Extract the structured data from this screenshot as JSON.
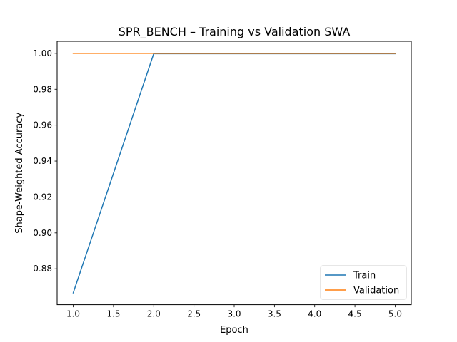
{
  "chart_data": {
    "type": "line",
    "title": "SPR_BENCH – Training vs Validation SWA",
    "xlabel": "Epoch",
    "ylabel": "Shape-Weighted Accuracy",
    "x": [
      1,
      2,
      3,
      4,
      5
    ],
    "series": [
      {
        "name": "Train",
        "values": [
          0.8666,
          0.9998,
          0.9998,
          0.9998,
          0.9998
        ],
        "color": "#1f77b4"
      },
      {
        "name": "Validation",
        "values": [
          1.0,
          1.0,
          1.0,
          1.0,
          1.0
        ],
        "color": "#ff7f0e"
      }
    ],
    "xlim": [
      0.8,
      5.2
    ],
    "ylim": [
      0.86,
      1.0067
    ],
    "xticks": [
      1.0,
      1.5,
      2.0,
      2.5,
      3.0,
      3.5,
      4.0,
      4.5,
      5.0
    ],
    "xtick_labels": [
      "1.0",
      "1.5",
      "2.0",
      "2.5",
      "3.0",
      "3.5",
      "4.0",
      "4.5",
      "5.0"
    ],
    "yticks": [
      0.88,
      0.9,
      0.92,
      0.94,
      0.96,
      0.98,
      1.0
    ],
    "ytick_labels": [
      "0.88",
      "0.90",
      "0.92",
      "0.94",
      "0.96",
      "0.98",
      "1.00"
    ],
    "grid": false,
    "legend_position": "lower-right"
  }
}
